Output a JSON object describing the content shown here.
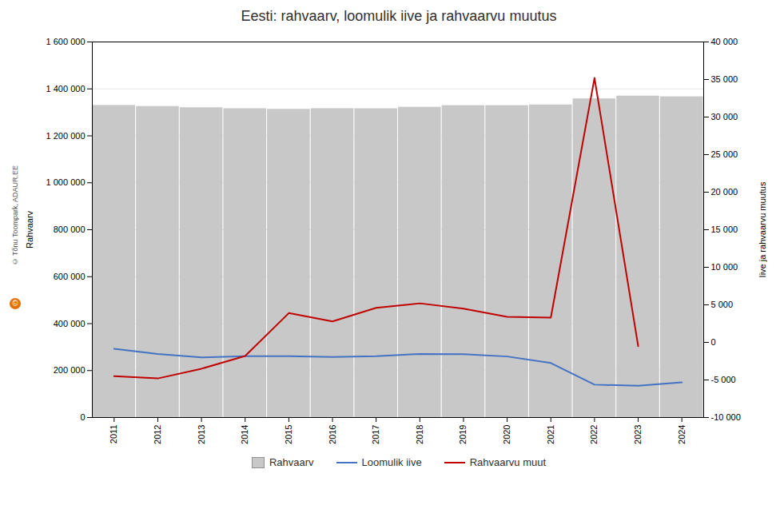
{
  "chart_data": {
    "type": "bar",
    "title": "Eesti: rahvaarv, loomulik iive ja rahvaarvu muutus",
    "x": [
      2011,
      2012,
      2013,
      2014,
      2015,
      2016,
      2017,
      2018,
      2019,
      2020,
      2021,
      2022,
      2023,
      2024
    ],
    "xlim": [
      2010.5,
      2024.5
    ],
    "xticks": [
      2011,
      2012,
      2013,
      2014,
      2015,
      2016,
      2017,
      2018,
      2019,
      2020,
      2021,
      2022,
      2023,
      2024
    ],
    "ylabel": "Rahvaarv",
    "ylim": [
      0,
      1600000
    ],
    "yticks": [
      0,
      {
        "value": 200000,
        "label": "200 000"
      },
      {
        "value": 400000,
        "label": "400 000"
      },
      {
        "value": 600000,
        "label": "600 000"
      },
      {
        "value": 800000,
        "label": "800 000"
      },
      {
        "value": 1000000,
        "label": "1 000 000"
      },
      {
        "value": 1200000,
        "label": "1 200 000"
      },
      {
        "value": 1400000,
        "label": "1 400 000"
      },
      {
        "value": 1600000,
        "label": "1 600 000"
      }
    ],
    "y2label": "Iive ja rahvaarvu muutus",
    "y2lim": [
      -10000,
      40000
    ],
    "y2ticks": [
      {
        "value": -10000,
        "label": "-10 000"
      },
      {
        "value": -5000,
        "label": "-5 000"
      },
      0,
      {
        "value": 5000,
        "label": "5 000"
      },
      {
        "value": 10000,
        "label": "10 000"
      },
      {
        "value": 15000,
        "label": "15 000"
      },
      {
        "value": 20000,
        "label": "20 000"
      },
      {
        "value": 25000,
        "label": "25 000"
      },
      {
        "value": 30000,
        "label": "30 000"
      },
      {
        "value": 35000,
        "label": "35 000"
      },
      {
        "value": 40000,
        "label": "40 000"
      }
    ],
    "series": [
      {
        "name": "Rahvaarv",
        "type": "bar",
        "color": "#c8c8c8",
        "values": [
          1329660,
          1325217,
          1319972,
          1315819,
          1313271,
          1315944,
          1315635,
          1321977,
          1328976,
          1328976,
          1331796,
          1357739,
          1369515,
          1366491
        ]
      },
      {
        "name": "Loomulik iive",
        "type": "line",
        "color": "#4472c4",
        "values": [
          293000,
          271000,
          256000,
          261000,
          261000,
          258000,
          261000,
          271000,
          270000,
          260000,
          232000,
          140000,
          135000,
          150000
        ]
      },
      {
        "name": "Rahvaarvu muut",
        "type": "line",
        "color": "#c00000",
        "axis": "y2",
        "values": [
          -4500,
          -4800,
          -3500,
          -1800,
          3900,
          2800,
          4600,
          5200,
          4500,
          3400,
          3300,
          35200,
          -500,
          null
        ]
      }
    ],
    "grid": true,
    "legend": "bottom",
    "annotations": [
      "© Tõnu Toompark, ADAUR.EE",
      "©"
    ]
  }
}
